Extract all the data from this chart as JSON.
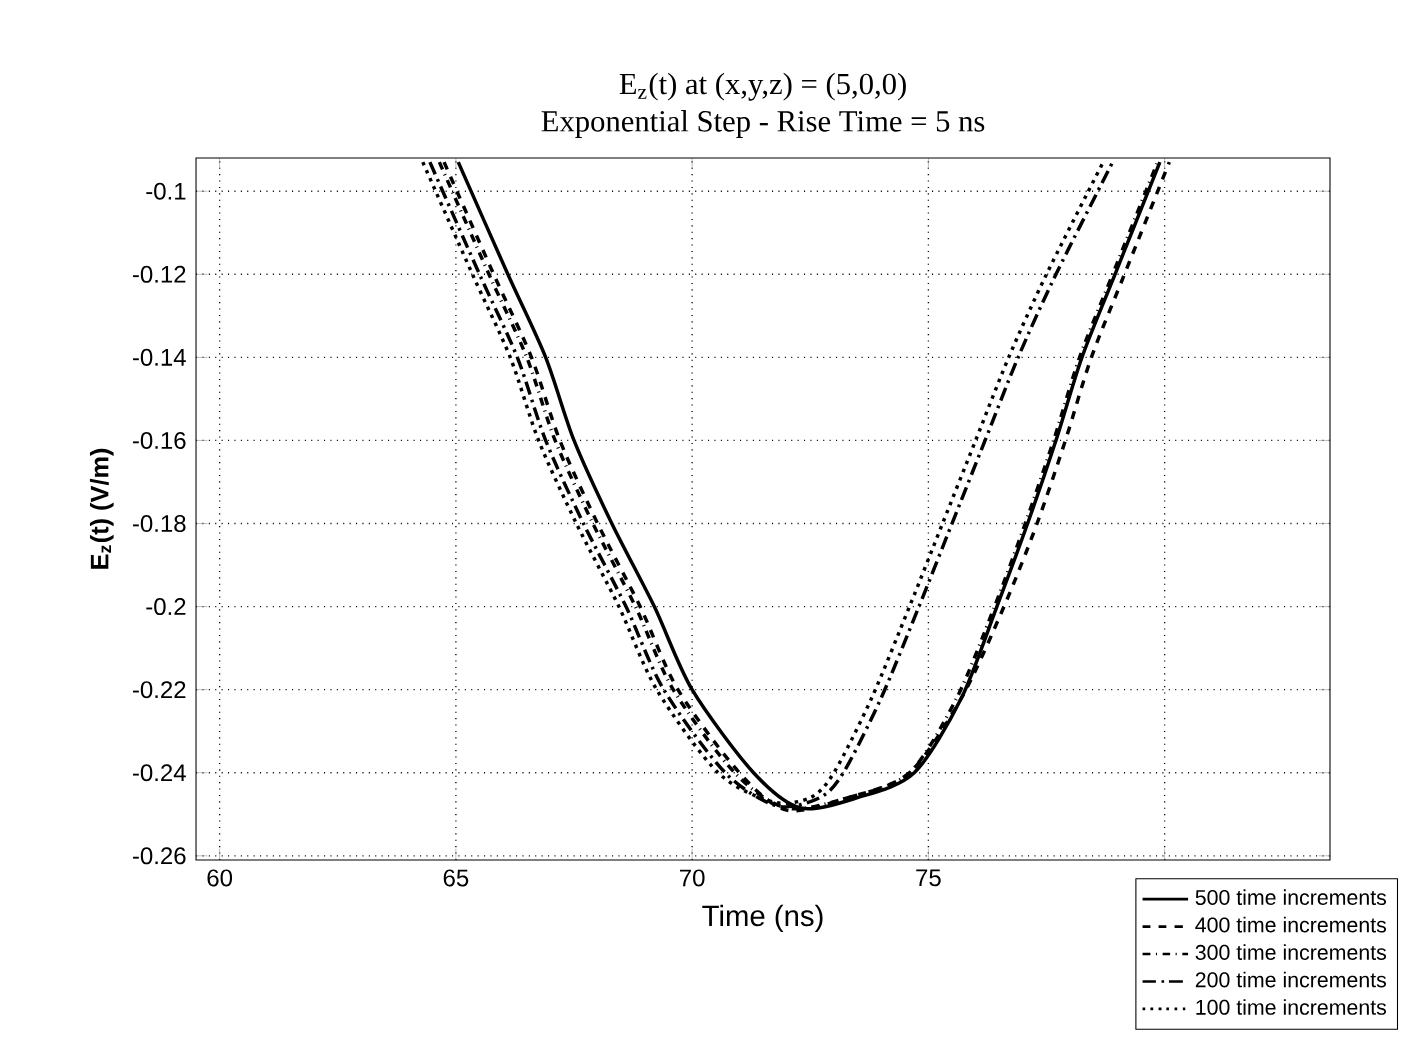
{
  "chart_data": {
    "type": "line",
    "title": "E$_{z}$(t) at (x,y,z) = (5,0,0)",
    "subtitle": "Exponential Step - Rise Time = 5 ns",
    "xlabel": "Time (ns)",
    "ylabel": "E$_{z}$(t) (V/m)",
    "xlim": [
      59.5,
      83.5
    ],
    "ylim": [
      -0.261,
      -0.092
    ],
    "xticks": [
      60,
      65,
      70,
      75,
      {
        "value": 80,
        "label": null
      }
    ],
    "yticks": [
      -0.26,
      -0.24,
      -0.22,
      -0.2,
      -0.18,
      -0.16,
      -0.14,
      -0.12,
      -0.1
    ],
    "grid": true,
    "legend": "bottom right",
    "marker": "none",
    "series": [
      {
        "name": "500 time increments",
        "color": "#000000",
        "line_style": "solid",
        "x": [
          65.05,
          66.1,
          66.9,
          67.5,
          68.3,
          69.2,
          70.0,
          71.3,
          72.3,
          73.5,
          74.7,
          75.7,
          76.45,
          77.1,
          77.7,
          78.25,
          78.95,
          79.9
        ],
        "values": [
          -0.093,
          -0.12,
          -0.14,
          -0.16,
          -0.18,
          -0.2,
          -0.22,
          -0.24,
          -0.2485,
          -0.246,
          -0.24,
          -0.222,
          -0.2,
          -0.18,
          -0.16,
          -0.14,
          -0.12,
          -0.093
        ]
      },
      {
        "name": "400 time increments",
        "color": "#000000",
        "line_style": "dashed",
        "x": [
          64.75,
          65.8,
          66.6,
          67.2,
          68.0,
          68.9,
          69.7,
          71.0,
          72.0,
          73.3,
          74.6,
          75.7,
          76.6,
          77.3,
          77.9,
          78.45,
          79.15,
          80.1
        ],
        "values": [
          -0.093,
          -0.12,
          -0.14,
          -0.16,
          -0.18,
          -0.2,
          -0.22,
          -0.24,
          -0.249,
          -0.246,
          -0.24,
          -0.222,
          -0.2,
          -0.18,
          -0.16,
          -0.14,
          -0.12,
          -0.093
        ]
      },
      {
        "name": "300 time increments",
        "color": "#000000",
        "line_style": "dashdotted",
        "x": [
          64.65,
          65.7,
          66.5,
          67.1,
          67.9,
          68.8,
          69.6,
          70.9,
          72.0,
          73.3,
          74.6,
          75.6,
          76.4,
          77.05,
          77.65,
          78.2,
          78.9,
          79.85
        ],
        "values": [
          -0.093,
          -0.12,
          -0.14,
          -0.16,
          -0.18,
          -0.2,
          -0.22,
          -0.24,
          -0.2485,
          -0.246,
          -0.24,
          -0.222,
          -0.2,
          -0.18,
          -0.16,
          -0.14,
          -0.12,
          -0.093
        ]
      },
      {
        "name": "200 time increments",
        "color": "#000000",
        "line_style": "loosely dashdotted",
        "x": [
          64.45,
          65.5,
          66.3,
          66.9,
          67.7,
          68.6,
          69.4,
          70.7,
          71.8,
          72.7,
          73.2,
          74.0,
          74.8,
          75.5,
          76.2,
          76.9,
          77.7,
          78.9
        ],
        "values": [
          -0.093,
          -0.12,
          -0.14,
          -0.16,
          -0.18,
          -0.2,
          -0.22,
          -0.24,
          -0.248,
          -0.246,
          -0.24,
          -0.222,
          -0.2,
          -0.18,
          -0.16,
          -0.14,
          -0.12,
          -0.093
        ]
      },
      {
        "name": "100 time increments",
        "color": "#000000",
        "line_style": "dotted",
        "x": [
          64.3,
          65.35,
          66.15,
          66.75,
          67.55,
          68.45,
          69.25,
          70.55,
          71.7,
          72.5,
          73.0,
          73.8,
          74.6,
          75.3,
          76.0,
          76.7,
          77.5,
          78.7
        ],
        "values": [
          -0.093,
          -0.12,
          -0.14,
          -0.16,
          -0.18,
          -0.2,
          -0.22,
          -0.24,
          -0.247,
          -0.246,
          -0.24,
          -0.222,
          -0.2,
          -0.18,
          -0.16,
          -0.14,
          -0.12,
          -0.093
        ]
      }
    ]
  }
}
